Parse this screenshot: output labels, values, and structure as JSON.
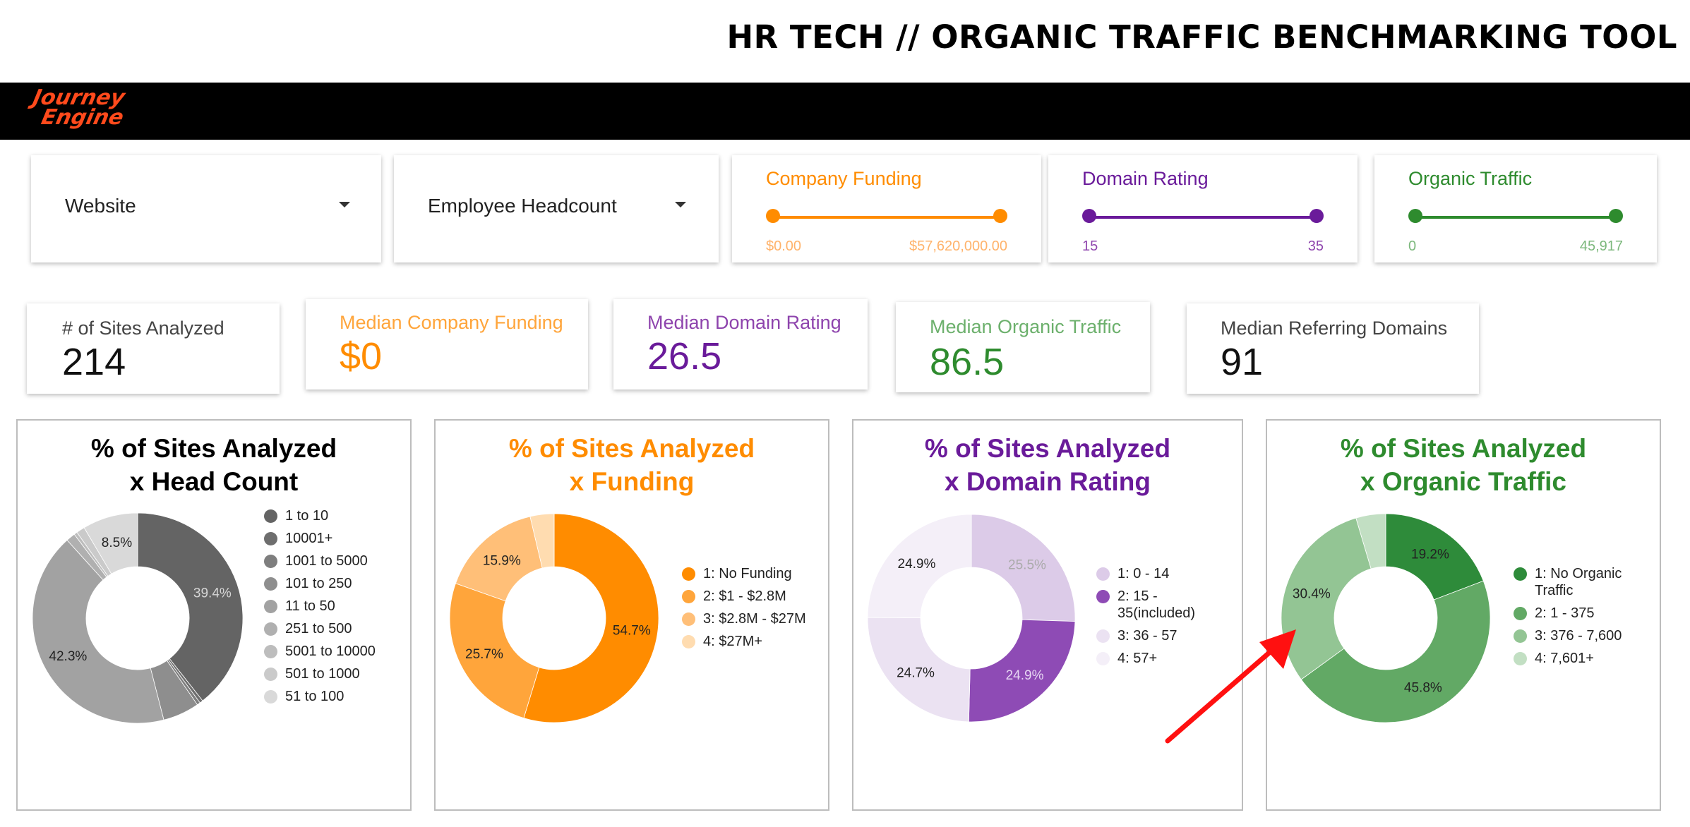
{
  "header": {
    "title": "HR TECH // ORGANIC TRAFFIC BENCHMARKING TOOL"
  },
  "brand": {
    "line1": "Journey",
    "line2": "Engine",
    "color": "#ff4a1c"
  },
  "filters": {
    "website": {
      "label": "Website"
    },
    "headcount": {
      "label": "Employee Headcount"
    },
    "funding": {
      "title": "Company Funding",
      "min": "$0.00",
      "max": "$57,620,000.00",
      "color": "#ff8c00",
      "range_color": "#ffb36b"
    },
    "domain_rating": {
      "title": "Domain Rating",
      "min": "15",
      "max": "35",
      "color": "#6a1b9a",
      "range_color": "#8e44ad"
    },
    "organic_traffic": {
      "title": "Organic Traffic",
      "min": "0",
      "max": "45,917",
      "color": "#2e8b2e",
      "range_color": "#7cb87c"
    }
  },
  "kpis": {
    "sites": {
      "label": "# of Sites Analyzed",
      "value": "214"
    },
    "funding": {
      "label": "Median Company Funding",
      "value": "$0"
    },
    "domain_rating": {
      "label": "Median Domain Rating",
      "value": "26.5"
    },
    "organic_traffic": {
      "label": "Median Organic Traffic",
      "value": "86.5"
    },
    "referring": {
      "label": "Median Referring Domains",
      "value": "91"
    }
  },
  "chart_data": [
    {
      "type": "pie",
      "title_line1": "% of Sites Analyzed",
      "title_line2": "x Head Count",
      "title_color": "#000000",
      "categories": [
        "1 to 10",
        "10001+",
        "1001 to 5000",
        "101 to 250",
        "11 to 50",
        "251 to 500",
        "5001 to 10000",
        "501 to 1000",
        "51 to 100"
      ],
      "values": [
        39.4,
        0.5,
        0.5,
        5.6,
        42.3,
        1.4,
        0.5,
        1.3,
        8.5
      ],
      "colors": [
        "#646464",
        "#6e6e6e",
        "#7e7e7e",
        "#8e8e8e",
        "#a2a2a2",
        "#b0b0b0",
        "#bdbdbd",
        "#cacaca",
        "#d9d9d9"
      ],
      "labels": [
        "39.4%",
        "",
        "",
        "",
        "42.3%",
        "",
        "",
        "",
        "8.5%"
      ],
      "label_colors": [
        "#d6d6d6",
        "",
        "",
        "",
        "#222222",
        "",
        "",
        "",
        "#222222"
      ]
    },
    {
      "type": "pie",
      "title_line1": "% of Sites Analyzed",
      "title_line2": "x Funding",
      "title_color": "#ff8c00",
      "categories": [
        "1: No Funding",
        "2: $1 - $2.8M",
        "3: $2.8M - $27M",
        "4: $27M+"
      ],
      "values": [
        54.7,
        25.7,
        15.9,
        3.7
      ],
      "colors": [
        "#ff8c00",
        "#ffa53b",
        "#ffbf78",
        "#ffdcb0"
      ],
      "labels": [
        "54.7%",
        "25.7%",
        "15.9%",
        ""
      ],
      "label_colors": [
        "#222222",
        "#222222",
        "#222222",
        ""
      ]
    },
    {
      "type": "pie",
      "title_line1": "% of Sites Analyzed",
      "title_line2": "x Domain Rating",
      "title_color": "#6a1b9a",
      "categories": [
        "1: 0 - 14",
        "2: 15 - 35(included)",
        "3: 36 - 57",
        "4: 57+"
      ],
      "values": [
        25.5,
        24.9,
        24.7,
        24.9
      ],
      "colors": [
        "#dccbe8",
        "#8e4bb5",
        "#ebe2f2",
        "#f4eff8"
      ],
      "labels": [
        "25.5%",
        "24.9%",
        "24.7%",
        "24.9%"
      ],
      "label_colors": [
        "#aaaaaa",
        "#e6d6f2",
        "#222222",
        "#222222"
      ]
    },
    {
      "type": "pie",
      "title_line1": "% of Sites Analyzed",
      "title_line2": "x Organic Traffic",
      "title_color": "#2e8b2e",
      "categories": [
        "1: No Organic Traffic",
        "2: 1 - 375",
        "3: 376 - 7,600",
        "4: 7,601+"
      ],
      "values": [
        19.2,
        45.8,
        30.4,
        4.6
      ],
      "colors": [
        "#2e8b3a",
        "#62a965",
        "#93c594",
        "#c2dfc3"
      ],
      "labels": [
        "19.2%",
        "45.8%",
        "30.4%",
        ""
      ],
      "label_colors": [
        "#222222",
        "#222222",
        "#222222",
        ""
      ]
    }
  ],
  "annotation": {
    "arrow_color": "#ff1010"
  }
}
